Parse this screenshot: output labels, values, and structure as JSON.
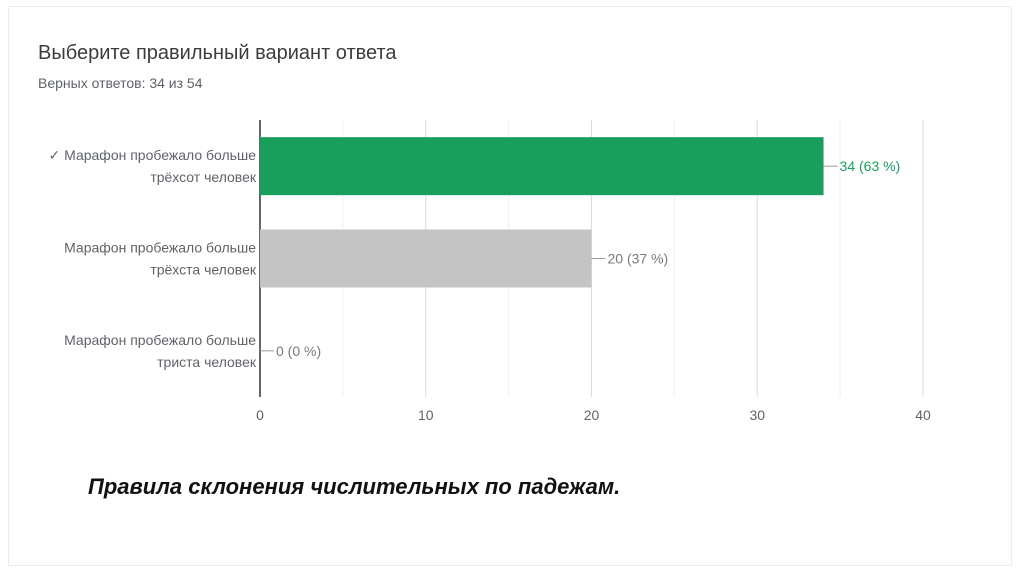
{
  "title": "Выберите правильный вариант ответа",
  "subtitle": "Верных ответов: 34 из 54",
  "caption": "Правила склонения числительных по падежам.",
  "colors": {
    "correct": "#1a9e5c",
    "other": "#c4c4c4",
    "correct_text": "#1a9e5c",
    "other_text": "#7a7a7a"
  },
  "chart_data": {
    "type": "bar",
    "orientation": "horizontal",
    "categories": [
      [
        "✓ Марафон пробежало больше",
        "трёхсот человек"
      ],
      [
        "Марафон пробежало больше",
        "трёхста человек"
      ],
      [
        "Марафон пробежало больше",
        "триста человек"
      ]
    ],
    "values": [
      34,
      20,
      0
    ],
    "value_labels": [
      "34 (63 %)",
      "20 (37 %)",
      "0 (0 %)"
    ],
    "correct": [
      true,
      false,
      false
    ],
    "xlim": [
      0,
      40
    ],
    "xticks": [
      0,
      10,
      20,
      30,
      40
    ],
    "grid": true
  }
}
